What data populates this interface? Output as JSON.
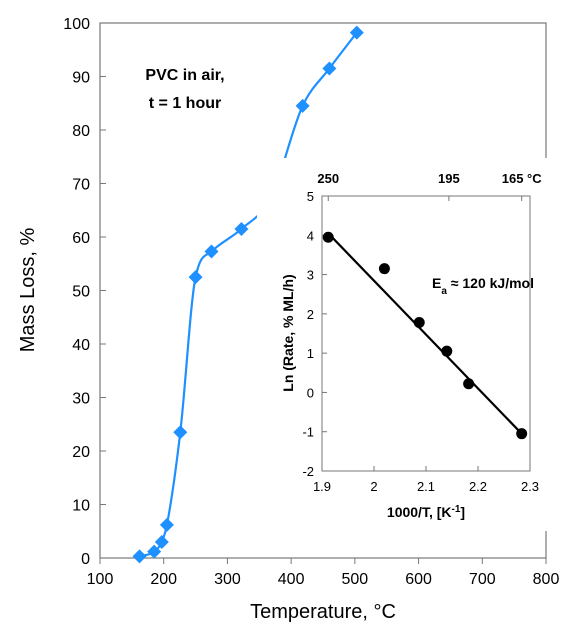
{
  "chart_data": [
    {
      "type": "line",
      "xlabel": "Temperature, °C",
      "ylabel": "Mass Loss, %",
      "xlim": [
        100,
        800
      ],
      "ylim": [
        0,
        100
      ],
      "xticks": [
        100,
        200,
        300,
        400,
        500,
        600,
        700,
        800
      ],
      "yticks": [
        0,
        10,
        20,
        30,
        40,
        50,
        60,
        70,
        80,
        90,
        100
      ],
      "annotation": [
        "PVC in air,",
        "t = 1 hour"
      ],
      "grid": false,
      "series": [
        {
          "color": "#1e90ff",
          "marker": "diamond",
          "x": [
            162,
            185,
            197,
            205,
            226,
            250,
            275,
            322,
            368,
            418,
            460,
            503
          ],
          "y": [
            0.3,
            1.2,
            3.0,
            6.2,
            23.5,
            52.5,
            57.3,
            61.5,
            67.3,
            84.5,
            91.5,
            98.2
          ]
        }
      ]
    },
    {
      "type": "scatter",
      "xlabel": "1000/T, [K",
      "xlabel_sup": "-1",
      "xlabel_suffix": "]",
      "ylabel": "Ln (Rate, % ML/h)",
      "xlim": [
        1.9,
        2.3
      ],
      "ylim": [
        -2,
        5
      ],
      "xticks": [
        "1.9",
        "2",
        "2.1",
        "2.2",
        "2.3"
      ],
      "yticks": [
        "-2",
        "-1",
        "0",
        "1",
        "2",
        "3",
        "4",
        "5"
      ],
      "top_axis_labels": [
        {
          "x": 1.912,
          "label": "250"
        },
        {
          "x": 2.144,
          "label": "195"
        },
        {
          "x": 2.284,
          "label": "165 °C"
        }
      ],
      "annotation": {
        "text": "E",
        "sub": "a",
        "rest": " ≈ 120 kJ/mol"
      },
      "points": {
        "color": "#000000",
        "x": [
          1.912,
          2.02,
          2.087,
          2.14,
          2.182,
          2.284
        ],
        "y": [
          3.95,
          3.15,
          1.78,
          1.05,
          0.22,
          -1.05
        ]
      },
      "fit_line": {
        "x": [
          1.912,
          2.284
        ],
        "y": [
          4.05,
          -1.05
        ]
      }
    }
  ]
}
